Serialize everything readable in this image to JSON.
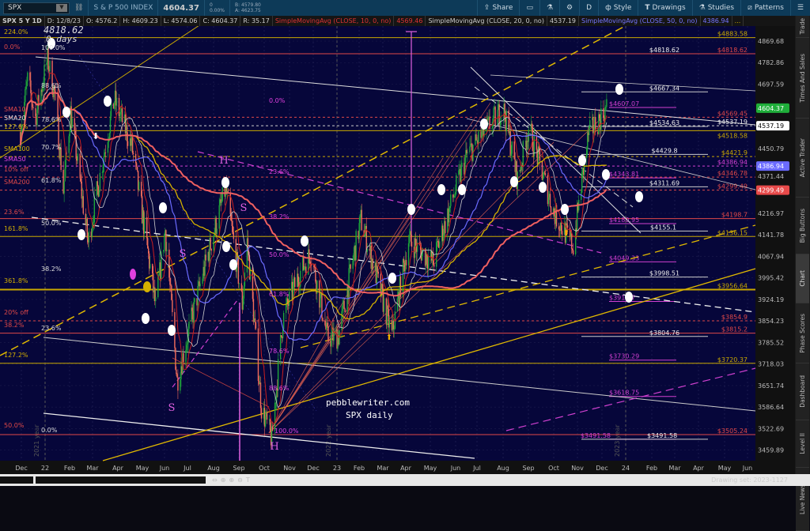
{
  "toolbar": {
    "symbol": "SPX",
    "description": "S & P 500 INDEX",
    "last": "4604.37",
    "change": "0",
    "change_pct": "0.00%",
    "bid": "B: 4579.80",
    "ask": "A: 4623.75",
    "buttons": [
      {
        "label": "Share",
        "icon": "share-icon"
      },
      {
        "label": "",
        "icon": "alert-icon"
      },
      {
        "label": "",
        "icon": "flask-icon"
      },
      {
        "label": "",
        "icon": "gear-icon"
      },
      {
        "label": "D",
        "icon": ""
      },
      {
        "label": "Style",
        "icon": "candle-icon"
      },
      {
        "label": "Drawings",
        "icon": "text-icon"
      },
      {
        "label": "Studies",
        "icon": "flask-icon"
      },
      {
        "label": "Patterns",
        "icon": "pattern-icon"
      },
      {
        "label": "",
        "icon": "menu-icon"
      }
    ]
  },
  "infobar": {
    "title": "SPX 5 Y 1D",
    "date": "D: 12/8/23",
    "open": "O: 4576.2",
    "high": "H: 4609.23",
    "low": "L: 4574.06",
    "close": "C: 4604.37",
    "range": "R: 35.17",
    "sma10": "SimpleMovingAvg (CLOSE, 10, 0, no)",
    "sma10_val": "4569.46",
    "sma20": "SimpleMovingAvg (CLOSE, 20, 0, no)",
    "sma20_val": "4537.19",
    "sma50": "SimpleMovingAvg (CLOSE, 50, 0, no)",
    "sma50_val": "4386.94",
    "more": "..."
  },
  "sidebar": {
    "tabs": [
      "Trade",
      "Times And Sales",
      "Active Trader",
      "Big Buttons",
      "Chart",
      "Phase Scores",
      "Dashboard",
      "Level II",
      "Live News"
    ],
    "active": "Chart"
  },
  "price_axis": {
    "ticks": [
      "4869.68",
      "4782.86",
      "4697.59",
      "4450.79",
      "4371.44",
      "4216.97",
      "4141.78",
      "4067.94",
      "3995.42",
      "3924.19",
      "3854.23",
      "3785.52",
      "3718.03",
      "3651.74",
      "3586.64",
      "3522.69",
      "3459.89"
    ],
    "badges": [
      {
        "value": "4604.37",
        "color": "#1fae3a"
      },
      {
        "value": "4537.19",
        "color": "#ffffff"
      },
      {
        "value": "4386.94",
        "color": "#6b6bff"
      },
      {
        "value": "4299.49",
        "color": "#e84a4a"
      }
    ]
  },
  "time_axis": [
    "Dec",
    "22",
    "Feb",
    "Mar",
    "Apr",
    "May",
    "Jun",
    "Jul",
    "Aug",
    "Sep",
    "Oct",
    "Nov",
    "Dec",
    "23",
    "Feb",
    "Mar",
    "Apr",
    "May",
    "Jun",
    "Jul",
    "Aug",
    "Sep",
    "Oct",
    "Nov",
    "Dec",
    "24",
    "Feb",
    "Mar",
    "Apr",
    "May",
    "Jun"
  ],
  "year_labels": [
    "2021 year",
    "2022 year",
    "2023 year"
  ],
  "levels": [
    {
      "label": "$4883.58",
      "price": 4883.58,
      "kind": "gold"
    },
    {
      "label": "$4818.62",
      "price": 4818.62,
      "kind": "white"
    },
    {
      "label": "$4818.62",
      "price": 4818.62,
      "kind": "red"
    },
    {
      "label": "$4667.34",
      "price": 4667.34,
      "kind": "white"
    },
    {
      "label": "$4607.07",
      "price": 4607.07,
      "kind": "magenta"
    },
    {
      "label": "$4569.45",
      "price": 4569.45,
      "kind": "red",
      "dashed": true
    },
    {
      "label": "$4537.19",
      "price": 4537.19,
      "kind": "white-right",
      "dashed": true
    },
    {
      "label": "$4534.63",
      "price": 4534.63,
      "kind": "white"
    },
    {
      "label": "$4518.58",
      "price": 4518.58,
      "kind": "gold"
    },
    {
      "label": "$4429.8",
      "price": 4429.8,
      "kind": "white"
    },
    {
      "label": "$4421.9",
      "price": 4421.9,
      "kind": "gold",
      "dashed": true
    },
    {
      "label": "$4386.94",
      "price": 4386.94,
      "kind": "magenta-right",
      "dashed": true
    },
    {
      "label": "$4343.81",
      "price": 4343.81,
      "kind": "magenta"
    },
    {
      "label": "$4346.78",
      "price": 4346.78,
      "kind": "red",
      "dashed": true
    },
    {
      "label": "$4311.69",
      "price": 4311.69,
      "kind": "white"
    },
    {
      "label": "$4299.49",
      "price": 4299.49,
      "kind": "red",
      "dashed": true
    },
    {
      "label": "$4198.7",
      "price": 4198.7,
      "kind": "red"
    },
    {
      "label": "$4180.95",
      "price": 4180.95,
      "kind": "magenta"
    },
    {
      "label": "$4155.1",
      "price": 4155.1,
      "kind": "white"
    },
    {
      "label": "$4136.15",
      "price": 4136.15,
      "kind": "gold"
    },
    {
      "label": "$4049.33",
      "price": 4049.33,
      "kind": "magenta"
    },
    {
      "label": "$3998.51",
      "price": 3998.51,
      "kind": "white"
    },
    {
      "label": "$3956.64",
      "price": 3956.64,
      "kind": "gold",
      "thick": true
    },
    {
      "label": "$3917.7",
      "price": 3917.7,
      "kind": "magenta"
    },
    {
      "label": "$3854.9",
      "price": 3854.9,
      "kind": "red",
      "dashed": true
    },
    {
      "label": "$3815.2",
      "price": 3815.2,
      "kind": "red"
    },
    {
      "label": "$3804.76",
      "price": 3804.76,
      "kind": "white"
    },
    {
      "label": "$3730.29",
      "price": 3730.29,
      "kind": "magenta"
    },
    {
      "label": "$3720.37",
      "price": 3720.37,
      "kind": "gold"
    },
    {
      "label": "$3618.75",
      "price": 3618.75,
      "kind": "magenta"
    },
    {
      "label": "$3505.24",
      "price": 3505.24,
      "kind": "red"
    },
    {
      "label": "$3491.58",
      "price": 3491.58,
      "kind": "magenta"
    },
    {
      "label": "$3491.58",
      "price": 3491.58,
      "kind": "white"
    }
  ],
  "left_labels": [
    {
      "t": "224.0%",
      "c": "#d4b000"
    },
    {
      "t": "0.0%",
      "c": "#e04848"
    },
    {
      "t": "100.0%",
      "c": "#dddddd"
    },
    {
      "t": "88.6%",
      "c": "#dddddd"
    },
    {
      "t": "SMA10",
      "c": "#e04848"
    },
    {
      "t": "SMA20",
      "c": "#dddddd"
    },
    {
      "t": "78.6%",
      "c": "#dddddd"
    },
    {
      "t": "127.6%",
      "c": "#d4b000"
    },
    {
      "t": "SMA100",
      "c": "#d4b000"
    },
    {
      "t": "70.7%",
      "c": "#dddddd"
    },
    {
      "t": "SMA50",
      "c": "#e040e0"
    },
    {
      "t": "10% off",
      "c": "#e04848"
    },
    {
      "t": "SMA200",
      "c": "#e04848"
    },
    {
      "t": "61.8%",
      "c": "#dddddd"
    },
    {
      "t": "23.6%",
      "c": "#e04848"
    },
    {
      "t": "50.0%",
      "c": "#dddddd"
    },
    {
      "t": "161.8%",
      "c": "#d4b000"
    },
    {
      "t": "38.2%",
      "c": "#dddddd"
    },
    {
      "t": "361.8%",
      "c": "#d4b000"
    },
    {
      "t": "20% off",
      "c": "#e04848"
    },
    {
      "t": "38.2%",
      "c": "#e04848"
    },
    {
      "t": "23.6%",
      "c": "#dddddd"
    },
    {
      "t": "127.2%",
      "c": "#d4b000"
    },
    {
      "t": "50.0%",
      "c": "#e04848"
    },
    {
      "t": "0.0%",
      "c": "#dddddd"
    }
  ],
  "fib_mid_labels": [
    {
      "t": "0.0%",
      "c": "#e040e0"
    },
    {
      "t": "23.6%",
      "c": "#e040e0"
    },
    {
      "t": "38.2%",
      "c": "#e040e0"
    },
    {
      "t": "50.0%",
      "c": "#e040e0"
    },
    {
      "t": "61.8%",
      "c": "#e040e0"
    },
    {
      "t": "78.6%",
      "c": "#e040e0"
    },
    {
      "t": "88.6%",
      "c": "#e040e0"
    },
    {
      "t": "100.0%",
      "c": "#e040e0"
    }
  ],
  "annotations": {
    "top_price": "4818.62",
    "days": "0 days",
    "site": "pebblewriter.com",
    "caption": "SPX daily",
    "pattern_letters": [
      "H",
      "S",
      "S",
      "S",
      "H"
    ]
  },
  "colors": {
    "bg": "#06063a",
    "up": "#1fa83a",
    "down": "#f26d5b",
    "sma10": "#c81e1e",
    "sma20": "#cccccc",
    "sma50": "#6b6bff",
    "sma100": "#d4b000",
    "sma200": "#f06060"
  },
  "chart_data": {
    "type": "candlestick",
    "symbol": "SPX",
    "timeframe": "1D",
    "scale": "log",
    "price_path": [
      [
        "2021-12-01",
        4513
      ],
      [
        "2021-12-10",
        4712
      ],
      [
        "2021-12-20",
        4568
      ],
      [
        "2022-01-04",
        4796
      ],
      [
        "2022-01-13",
        4660
      ],
      [
        "2022-01-24",
        4300
      ],
      [
        "2022-02-02",
        4590
      ],
      [
        "2022-02-24",
        4114
      ],
      [
        "2022-03-29",
        4637
      ],
      [
        "2022-04-20",
        4460
      ],
      [
        "2022-05-20",
        3900
      ],
      [
        "2022-06-01",
        4160
      ],
      [
        "2022-06-16",
        3666
      ],
      [
        "2022-07-08",
        3900
      ],
      [
        "2022-08-16",
        4305
      ],
      [
        "2022-09-06",
        3908
      ],
      [
        "2022-09-12",
        4119
      ],
      [
        "2022-09-30",
        3585
      ],
      [
        "2022-10-13",
        3491
      ],
      [
        "2022-10-27",
        3860
      ],
      [
        "2022-11-15",
        4000
      ],
      [
        "2022-12-01",
        4080
      ],
      [
        "2022-12-22",
        3800
      ],
      [
        "2023-01-05",
        3808
      ],
      [
        "2023-02-02",
        4195
      ],
      [
        "2023-03-13",
        3808
      ],
      [
        "2023-04-03",
        4124
      ],
      [
        "2023-05-04",
        4048
      ],
      [
        "2023-06-15",
        4425
      ],
      [
        "2023-07-31",
        4607
      ],
      [
        "2023-08-18",
        4335
      ],
      [
        "2023-09-01",
        4530
      ],
      [
        "2023-10-03",
        4216
      ],
      [
        "2023-10-27",
        4103
      ],
      [
        "2023-11-15",
        4502
      ],
      [
        "2023-12-08",
        4604
      ]
    ],
    "last_bar": {
      "date": "12/8/23",
      "open": 4576.2,
      "high": 4609.23,
      "low": 4574.06,
      "close": 4604.37
    }
  },
  "footer": {
    "drawing_set": "Drawing set: 2023-1127"
  }
}
